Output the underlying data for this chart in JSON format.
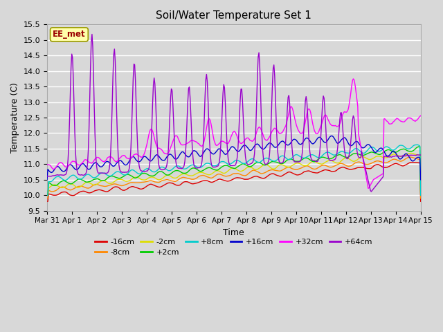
{
  "title": "Soil/Water Temperature Set 1",
  "xlabel": "Time",
  "ylabel": "Temperature (C)",
  "ylim": [
    9.5,
    15.5
  ],
  "yticks": [
    9.5,
    10.0,
    10.5,
    11.0,
    11.5,
    12.0,
    12.5,
    13.0,
    13.5,
    14.0,
    14.5,
    15.0,
    15.5
  ],
  "xtick_labels": [
    "Mar 31",
    "Apr 1",
    "Apr 2",
    "Apr 3",
    "Apr 4",
    "Apr 5",
    "Apr 6",
    "Apr 7",
    "Apr 8",
    "Apr 9",
    "Apr 10",
    "Apr 11",
    "Apr 12",
    "Apr 13",
    "Apr 14",
    "Apr 15"
  ],
  "series_colors": {
    "-16cm": "#dd0000",
    "-8cm": "#ff8800",
    "-2cm": "#dddd00",
    "+2cm": "#00cc00",
    "+8cm": "#00cccc",
    "+16cm": "#0000cc",
    "+32cm": "#ff00ff",
    "+64cm": "#9900cc"
  },
  "legend_label": "EE_met",
  "bg_color": "#d8d8d8",
  "grid_color": "#ffffff",
  "n_points": 500
}
